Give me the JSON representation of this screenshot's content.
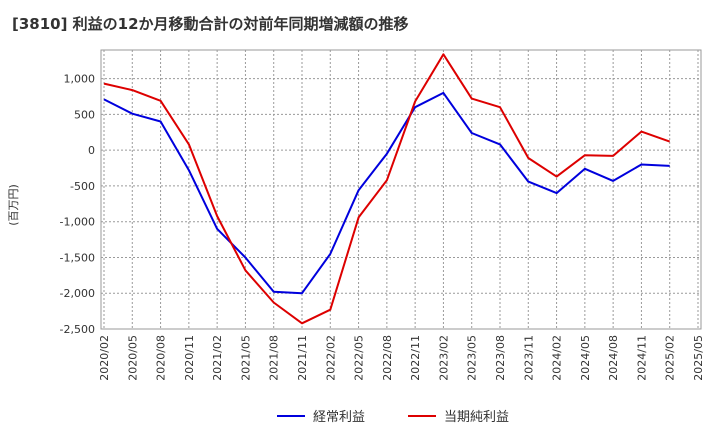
{
  "chart_data": {
    "type": "line",
    "title": "[3810]  利益の12か月移動合計の対前年同期増減額の推移",
    "ylabel": "(百万円)",
    "xlabel": "",
    "ylim": [
      -2500,
      1400
    ],
    "yticks": [
      1000,
      500,
      0,
      -500,
      -1000,
      -1500,
      -2000,
      -2500
    ],
    "ytick_labels": [
      "1,000",
      "500",
      "0",
      "-500",
      "-1,000",
      "-1,500",
      "-2,000",
      "-2,500"
    ],
    "x_labels": [
      "2020/02",
      "2020/05",
      "2020/08",
      "2020/11",
      "2021/02",
      "2021/05",
      "2021/08",
      "2021/11",
      "2022/02",
      "2022/05",
      "2022/08",
      "2022/11",
      "2023/02",
      "2023/05",
      "2023/08",
      "2023/11",
      "2024/02",
      "2024/05",
      "2024/08",
      "2024/11",
      "2025/02",
      "2025/05"
    ],
    "grid": true,
    "legend_position": "bottom",
    "series": [
      {
        "name": "経常利益",
        "color": "#0000dd",
        "values": [
          710,
          510,
          400,
          -280,
          -1100,
          -1500,
          -1980,
          -2000,
          -1450,
          -560,
          -50,
          600,
          800,
          240,
          80,
          -440,
          -600,
          -260,
          -430,
          -200,
          -220,
          null
        ]
      },
      {
        "name": "当期純利益",
        "color": "#dd0000",
        "values": [
          930,
          840,
          690,
          80,
          -920,
          -1680,
          -2130,
          -2420,
          -2230,
          -940,
          -420,
          680,
          1340,
          720,
          600,
          -110,
          -370,
          -70,
          -80,
          260,
          120,
          null
        ]
      }
    ]
  }
}
